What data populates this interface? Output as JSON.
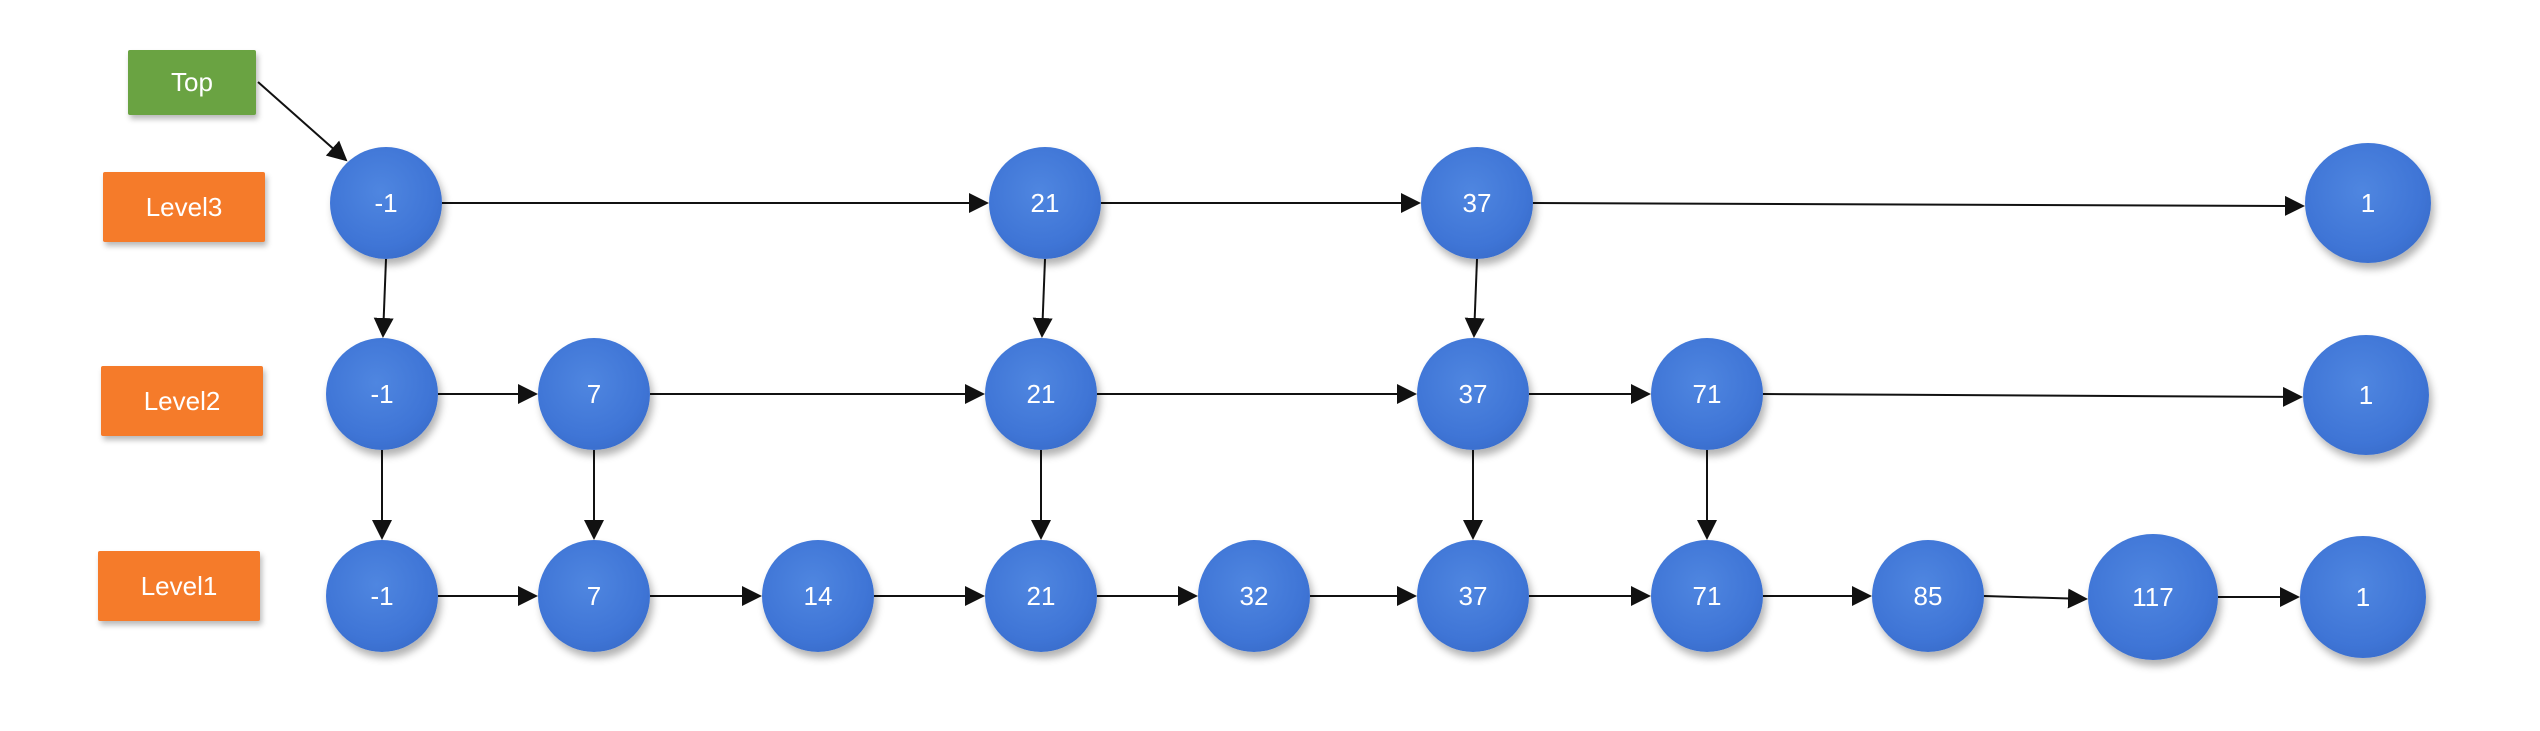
{
  "colors": {
    "top_box": "#6aa342",
    "level_box": "#f57b2a",
    "node": "#3f75d6",
    "arrow": "#111111"
  },
  "labels": {
    "top": "Top",
    "level3": "Level3",
    "level2": "Level2",
    "level1": "Level1"
  },
  "levels": {
    "level3": [
      "-1",
      "21",
      "37",
      "1"
    ],
    "level2": [
      "-1",
      "7",
      "21",
      "37",
      "71",
      "1"
    ],
    "level1": [
      "-1",
      "7",
      "14",
      "21",
      "32",
      "37",
      "71",
      "85",
      "117",
      "1"
    ]
  }
}
